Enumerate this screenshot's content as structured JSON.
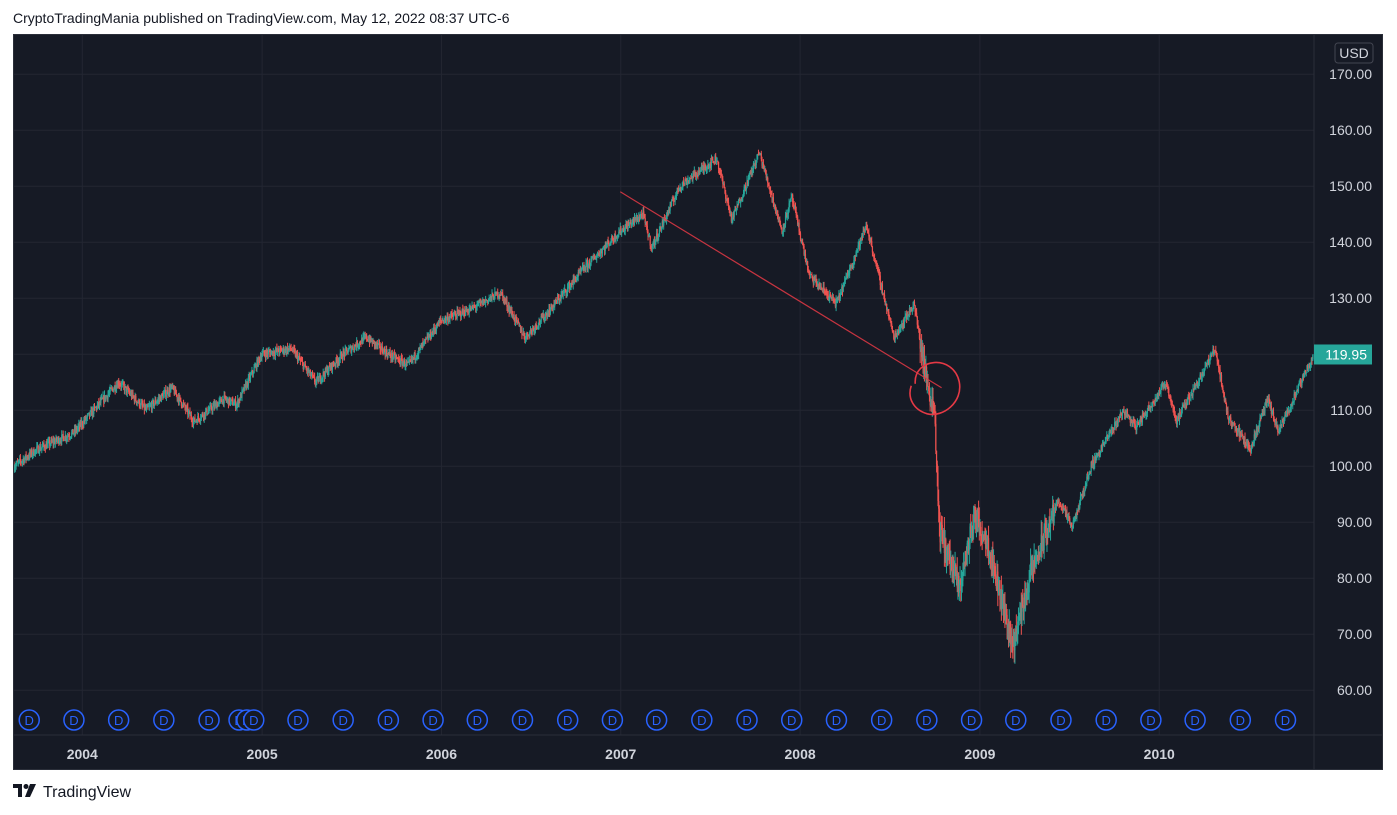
{
  "header": {
    "text": "CryptoTradingMania published on TradingView.com, May 12, 2022 08:37 UTC-6"
  },
  "footer": {
    "logo_text": "TradingView"
  },
  "chart_data": {
    "type": "candlestick",
    "currency_label": "USD",
    "last_price": 119.95,
    "last_price_label": "119.95",
    "colors": {
      "background": "#161a25",
      "up": "#26a69a",
      "down": "#ef5350",
      "grid": "#232632",
      "annotation": "#e53945",
      "marker": "#2962ff",
      "price_badge": "#26a69a"
    },
    "y_axis": {
      "range": [
        52,
        177
      ],
      "ticks": [
        "170.00",
        "160.00",
        "150.00",
        "140.00",
        "130.00",
        "120.00",
        "110.00",
        "100.00",
        "90.00",
        "80.00",
        "70.00",
        "60.00"
      ],
      "tick_values": [
        170,
        160,
        150,
        140,
        130,
        120,
        110,
        100,
        90,
        80,
        70,
        60
      ]
    },
    "x_axis": {
      "range": [
        "2003-08-15",
        "2010-11-12"
      ],
      "labels": [
        "2004",
        "2005",
        "2006",
        "2007",
        "2008",
        "2009",
        "2010"
      ],
      "label_dates": [
        "2004-01-01",
        "2005-01-01",
        "2006-01-01",
        "2007-01-01",
        "2008-01-01",
        "2009-01-01",
        "2010-01-01"
      ]
    },
    "price_path": [
      [
        "2003-08-15",
        100
      ],
      [
        "2003-10-01",
        103
      ],
      [
        "2003-12-15",
        106
      ],
      [
        "2004-03-15",
        115
      ],
      [
        "2004-05-10",
        110
      ],
      [
        "2004-07-01",
        114
      ],
      [
        "2004-08-15",
        108
      ],
      [
        "2004-10-15",
        112
      ],
      [
        "2004-11-10",
        111
      ],
      [
        "2004-12-31",
        120
      ],
      [
        "2005-03-01",
        121
      ],
      [
        "2005-04-20",
        115
      ],
      [
        "2005-06-15",
        120
      ],
      [
        "2005-08-01",
        123
      ],
      [
        "2005-09-15",
        120
      ],
      [
        "2005-10-25",
        118
      ],
      [
        "2005-12-31",
        126
      ],
      [
        "2006-03-01",
        128
      ],
      [
        "2006-05-01",
        131
      ],
      [
        "2006-06-20",
        123
      ],
      [
        "2006-08-01",
        127
      ],
      [
        "2006-10-15",
        135
      ],
      [
        "2006-12-31",
        142
      ],
      [
        "2007-02-15",
        145
      ],
      [
        "2007-03-05",
        139
      ],
      [
        "2007-05-01",
        150
      ],
      [
        "2007-07-15",
        155
      ],
      [
        "2007-08-15",
        144
      ],
      [
        "2007-10-10",
        156
      ],
      [
        "2007-11-25",
        142
      ],
      [
        "2007-12-15",
        148
      ],
      [
        "2008-01-20",
        134
      ],
      [
        "2008-03-15",
        129
      ],
      [
        "2008-05-15",
        143
      ],
      [
        "2008-07-10",
        123
      ],
      [
        "2008-08-20",
        129
      ],
      [
        "2008-09-15",
        115
      ],
      [
        "2008-10-01",
        110
      ],
      [
        "2008-10-10",
        89
      ],
      [
        "2008-11-20",
        78
      ],
      [
        "2008-12-20",
        91
      ],
      [
        "2009-01-15",
        87
      ],
      [
        "2009-03-09",
        68
      ],
      [
        "2009-04-15",
        81
      ],
      [
        "2009-06-10",
        94
      ],
      [
        "2009-07-08",
        89
      ],
      [
        "2009-08-15",
        100
      ],
      [
        "2009-10-20",
        110
      ],
      [
        "2009-11-15",
        107
      ],
      [
        "2010-01-15",
        115
      ],
      [
        "2010-02-05",
        108
      ],
      [
        "2010-04-25",
        121
      ],
      [
        "2010-05-20",
        109
      ],
      [
        "2010-07-05",
        103
      ],
      [
        "2010-08-10",
        112
      ],
      [
        "2010-08-31",
        106
      ],
      [
        "2010-11-12",
        120
      ]
    ],
    "trendline": {
      "start": [
        "2006-12-31",
        149
      ],
      "end": [
        "2008-10-15",
        114
      ]
    },
    "highlight_circle": {
      "center": [
        "2008-09-28",
        114
      ],
      "note": "hand-drawn circle"
    },
    "dividend_markers": {
      "label": "D",
      "dates": [
        "2003-09-15",
        "2003-12-15",
        "2004-03-15",
        "2004-06-15",
        "2004-09-15",
        "2004-11-15",
        "2004-12-01",
        "2004-12-15",
        "2005-03-15",
        "2005-06-15",
        "2005-09-15",
        "2005-12-15",
        "2006-03-15",
        "2006-06-15",
        "2006-09-15",
        "2006-12-15",
        "2007-03-15",
        "2007-06-15",
        "2007-09-15",
        "2007-12-15",
        "2008-03-15",
        "2008-06-15",
        "2008-09-15",
        "2008-12-15",
        "2009-03-15",
        "2009-06-15",
        "2009-09-15",
        "2009-12-15",
        "2010-03-15",
        "2010-06-15",
        "2010-09-15"
      ]
    }
  }
}
